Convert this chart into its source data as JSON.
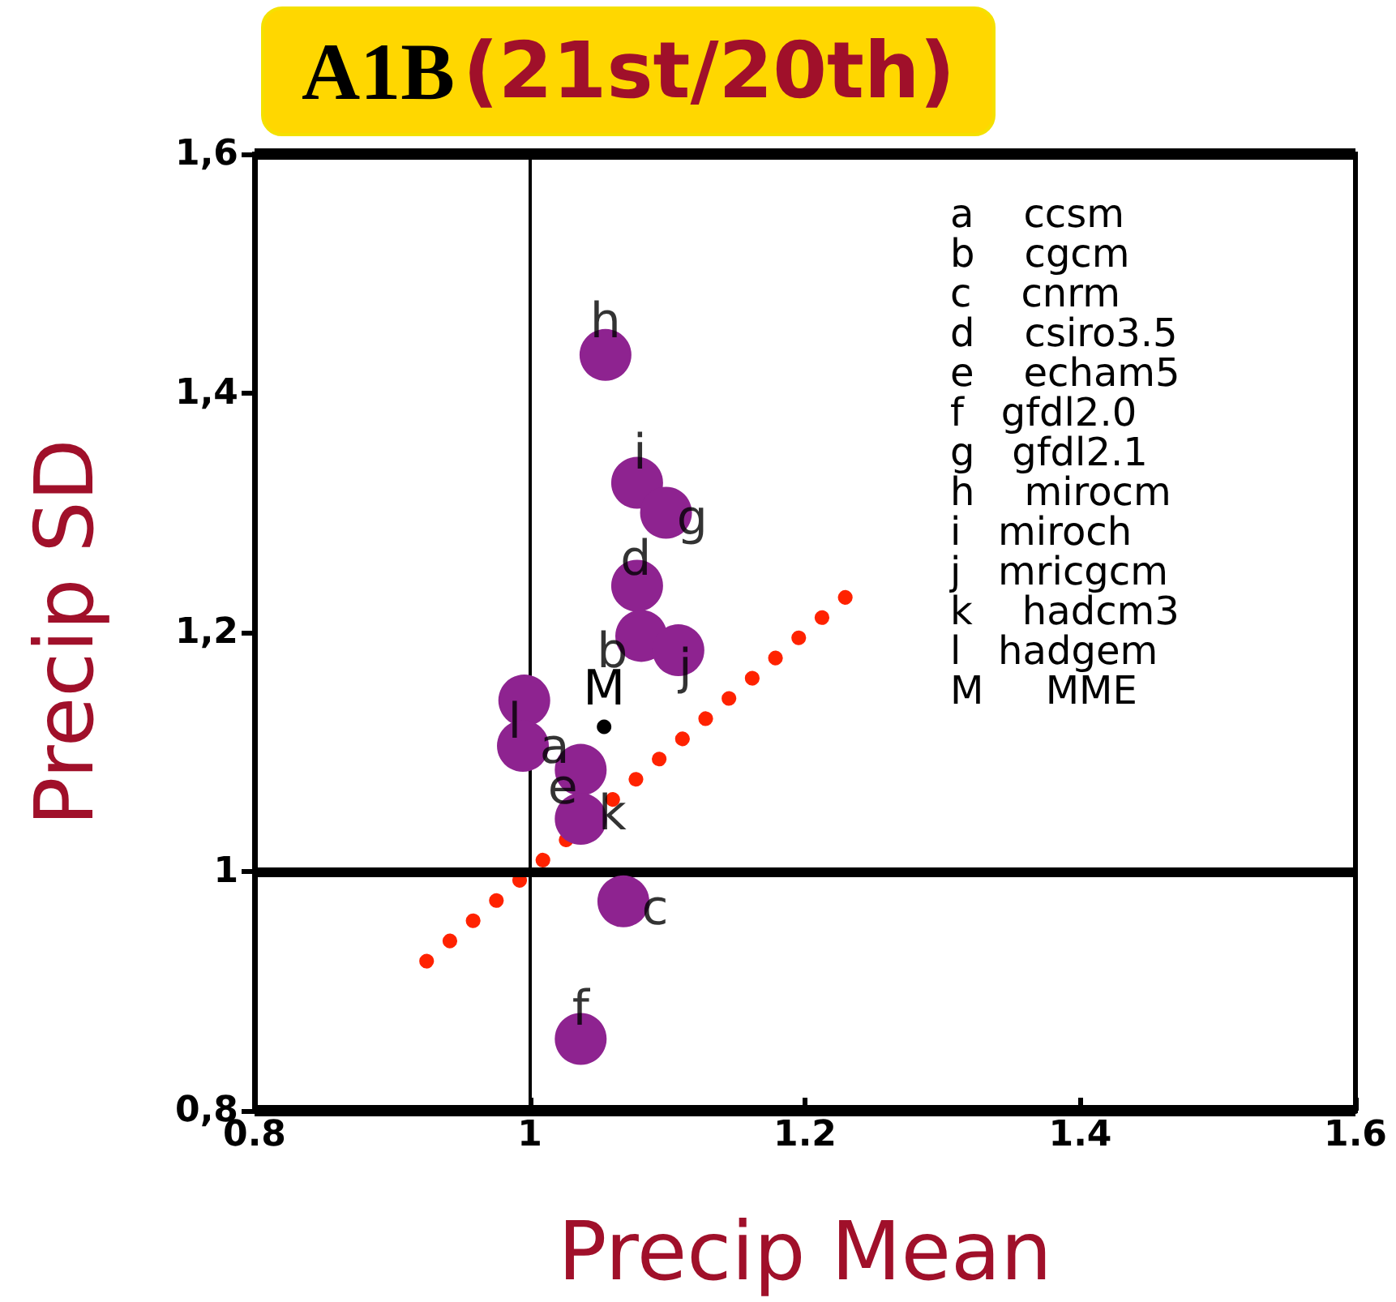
{
  "chart_data": {
    "type": "scatter",
    "title": "A1B",
    "subtitle": "(21st/20th)",
    "xlabel": "Precip Mean",
    "ylabel": "Precip SD",
    "xlim": [
      0.8,
      1.6
    ],
    "xticks": [
      0.8,
      1,
      1.2,
      1.4,
      1.6
    ],
    "ylim": [
      0.8,
      1.6
    ],
    "yticks": [
      {
        "value": 0.8,
        "label": "0,8"
      },
      1,
      {
        "value": 1.2,
        "label": "1,2"
      },
      {
        "value": 1.4,
        "label": "1,4"
      },
      {
        "value": 1.6,
        "label": "1,6"
      }
    ],
    "grid": false,
    "series": [
      {
        "color": "#8e2390",
        "marker": "circle",
        "x": [
          1.055,
          1.078,
          1.099,
          1.078,
          1.081,
          1.108,
          0.996,
          0.995,
          1.037,
          1.037,
          1.068,
          1.037
        ],
        "values": [
          1.432,
          1.325,
          1.3,
          1.239,
          1.197,
          1.185,
          1.143,
          1.105,
          1.085,
          1.044,
          0.975,
          0.86
        ]
      },
      {
        "color": "#000000",
        "marker": "circle",
        "x": [
          1.054
        ],
        "values": [
          1.121
        ],
        "value_labels": [
          "M"
        ]
      },
      {
        "type": "line",
        "color": "#ff2200",
        "line_style": "dotted",
        "x": [
          0.925,
          1.23
        ],
        "values": [
          0.925,
          1.23
        ]
      }
    ],
    "ref_lines": [
      {
        "axis": "x",
        "value": 1,
        "color": "#000000"
      },
      {
        "axis": "y",
        "value": 1,
        "color": "#000000"
      }
    ],
    "annotations": [
      {
        "text": "h",
        "x": 1.055,
        "y": 1.46
      },
      {
        "text": "i",
        "x": 1.08,
        "y": 1.35
      },
      {
        "text": "g",
        "x": 1.118,
        "y": 1.295
      },
      {
        "text": "d",
        "x": 1.077,
        "y": 1.261
      },
      {
        "text": "b",
        "x": 1.06,
        "y": 1.184
      },
      {
        "text": "j",
        "x": 1.113,
        "y": 1.17
      },
      {
        "text": "l",
        "x": 0.989,
        "y": 1.125
      },
      {
        "text": "a",
        "x": 1.018,
        "y": 1.104
      },
      {
        "text": "e",
        "x": 1.024,
        "y": 1.07
      },
      {
        "text": "k",
        "x": 1.06,
        "y": 1.048
      },
      {
        "text": "c",
        "x": 1.091,
        "y": 0.969
      },
      {
        "text": "f",
        "x": 1.037,
        "y": 0.885
      },
      "a    ccsm",
      "b    cgcm",
      "c    cnrm",
      "d    csiro3.5",
      "e    echam5",
      "f   gfdl2.0",
      "g   gfdl2.1",
      "h    mirocm",
      "i   miroch",
      "j   mricgcm",
      "k    hadcm3",
      "l   hadgem",
      "M     MME"
    ]
  }
}
